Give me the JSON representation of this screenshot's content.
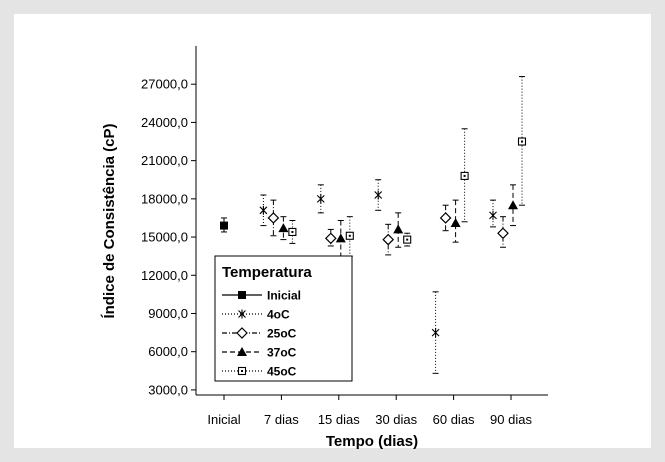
{
  "chart_data": {
    "type": "scatter",
    "title": "",
    "xlabel": "Tempo (dias)",
    "ylabel": "Índice de Consistência (cP)",
    "categories": [
      "Inicial",
      "7 dias",
      "15 dias",
      "30 dias",
      "60 dias",
      "90 dias"
    ],
    "ylim": [
      2600,
      30000
    ],
    "yticks": [
      3000,
      6000,
      9000,
      12000,
      15000,
      18000,
      21000,
      24000,
      27000
    ],
    "ytick_labels": [
      "3000,0",
      "6000,0",
      "9000,0",
      "12000,0",
      "15000,0",
      "18000,0",
      "21000,0",
      "24000,0",
      "27000,0"
    ],
    "grid": false,
    "legend": {
      "title": "Temperatura",
      "position": "bottom-left"
    },
    "series": [
      {
        "name": "Inicial",
        "marker": "filled-square",
        "line": "solid",
        "points": [
          {
            "x": "Inicial",
            "y": 15900,
            "low": 15400,
            "high": 16500
          }
        ]
      },
      {
        "name": "4oC",
        "marker": "asterisk",
        "line": "dotted",
        "points": [
          {
            "x": "7 dias",
            "y": 17100,
            "low": 15900,
            "high": 18300
          },
          {
            "x": "15 dias",
            "y": 18000,
            "low": 16900,
            "high": 19100
          },
          {
            "x": "30 dias",
            "y": 18300,
            "low": 17100,
            "high": 19500
          },
          {
            "x": "60 dias",
            "y": 7500,
            "low": 4300,
            "high": 10700
          },
          {
            "x": "90 dias",
            "y": 16700,
            "low": 15800,
            "high": 17900
          }
        ]
      },
      {
        "name": "25oC",
        "marker": "open-diamond",
        "line": "dash-dot",
        "points": [
          {
            "x": "7 dias",
            "y": 16500,
            "low": 15100,
            "high": 17900
          },
          {
            "x": "15 dias",
            "y": 14900,
            "low": 14300,
            "high": 15600
          },
          {
            "x": "30 dias",
            "y": 14800,
            "low": 13600,
            "high": 16000
          },
          {
            "x": "60 dias",
            "y": 16500,
            "low": 15500,
            "high": 17500
          },
          {
            "x": "90 dias",
            "y": 15300,
            "low": 14200,
            "high": 16600
          }
        ]
      },
      {
        "name": "37oC",
        "marker": "filled-triangle",
        "line": "dashed",
        "points": [
          {
            "x": "7 dias",
            "y": 15700,
            "low": 14800,
            "high": 16600
          },
          {
            "x": "15 dias",
            "y": 14900,
            "low": 13400,
            "high": 16300
          },
          {
            "x": "30 dias",
            "y": 15600,
            "low": 14200,
            "high": 16900
          },
          {
            "x": "60 dias",
            "y": 16100,
            "low": 14600,
            "high": 17900
          },
          {
            "x": "90 dias",
            "y": 17500,
            "low": 15900,
            "high": 19100
          }
        ]
      },
      {
        "name": "45oC",
        "marker": "open-square-dot",
        "line": "dotted",
        "points": [
          {
            "x": "7 dias",
            "y": 15400,
            "low": 14500,
            "high": 16300
          },
          {
            "x": "15 dias",
            "y": 15100,
            "low": 13500,
            "high": 16600
          },
          {
            "x": "30 dias",
            "y": 14800,
            "low": 14300,
            "high": 15300
          },
          {
            "x": "60 dias",
            "y": 19800,
            "low": 16200,
            "high": 23500
          },
          {
            "x": "90 dias",
            "y": 22500,
            "low": 17500,
            "high": 27600
          }
        ]
      }
    ]
  }
}
